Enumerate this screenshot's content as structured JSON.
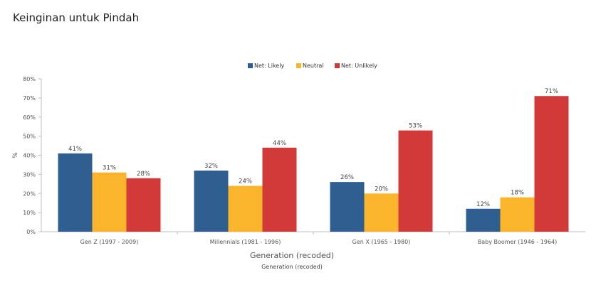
{
  "page": {
    "title": "Keinginan untuk Pindah"
  },
  "chart_data": {
    "type": "bar",
    "categories": [
      "Gen Z (1997 - 2009)",
      "Millennials (1981 - 1996)",
      "Gen X (1965 - 1980)",
      "Baby Boomer (1946 - 1964)"
    ],
    "series": [
      {
        "name": "Net: Likely",
        "color": "#2f5e91",
        "values": [
          41,
          32,
          26,
          12
        ]
      },
      {
        "name": "Neutral",
        "color": "#fbb52c",
        "values": [
          31,
          24,
          20,
          18
        ]
      },
      {
        "name": "Net: Unlikely",
        "color": "#d23a3a",
        "values": [
          28,
          44,
          53,
          71
        ]
      }
    ],
    "data_labels": [
      [
        "41%",
        "32%",
        "26%",
        "12%"
      ],
      [
        "31%",
        "24%",
        "20%",
        "18%"
      ],
      [
        "28%",
        "44%",
        "53%",
        "71%"
      ]
    ],
    "xlabel": "Generation (recoded)",
    "xlabel_secondary": "Generation (recoded)",
    "ylabel": "%",
    "ylim": [
      0,
      80
    ],
    "yticks": [
      "0%",
      "10%",
      "20%",
      "30%",
      "40%",
      "50%",
      "60%",
      "70%",
      "80%"
    ],
    "grid": false,
    "legend_position": "top-center"
  }
}
